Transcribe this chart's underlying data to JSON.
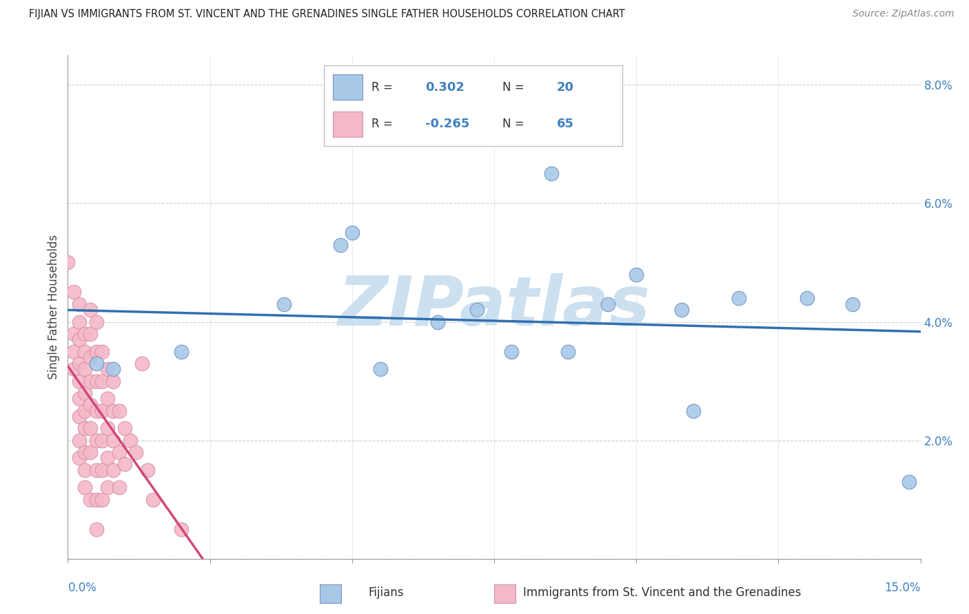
{
  "title": "FIJIAN VS IMMIGRANTS FROM ST. VINCENT AND THE GRENADINES SINGLE FATHER HOUSEHOLDS CORRELATION CHART",
  "source": "Source: ZipAtlas.com",
  "ylabel": "Single Father Households",
  "blue_color": "#a8c8e8",
  "pink_color": "#f4b8c8",
  "blue_line_color": "#3070b0",
  "pink_line_color": "#d04878",
  "pink_line_dash_color": "#e8a0b8",
  "text_color_blue": "#4080c0",
  "text_color_dark": "#303030",
  "blue_scatter": [
    [
      0.005,
      0.033
    ],
    [
      0.008,
      0.032
    ],
    [
      0.02,
      0.035
    ],
    [
      0.038,
      0.043
    ],
    [
      0.048,
      0.053
    ],
    [
      0.05,
      0.055
    ],
    [
      0.055,
      0.032
    ],
    [
      0.065,
      0.04
    ],
    [
      0.072,
      0.042
    ],
    [
      0.078,
      0.035
    ],
    [
      0.085,
      0.065
    ],
    [
      0.088,
      0.035
    ],
    [
      0.095,
      0.043
    ],
    [
      0.1,
      0.048
    ],
    [
      0.108,
      0.042
    ],
    [
      0.11,
      0.025
    ],
    [
      0.118,
      0.044
    ],
    [
      0.13,
      0.044
    ],
    [
      0.138,
      0.043
    ],
    [
      0.148,
      0.013
    ]
  ],
  "pink_scatter": [
    [
      0.0,
      0.05
    ],
    [
      0.001,
      0.045
    ],
    [
      0.001,
      0.038
    ],
    [
      0.001,
      0.035
    ],
    [
      0.001,
      0.032
    ],
    [
      0.002,
      0.043
    ],
    [
      0.002,
      0.04
    ],
    [
      0.002,
      0.037
    ],
    [
      0.002,
      0.033
    ],
    [
      0.002,
      0.03
    ],
    [
      0.002,
      0.027
    ],
    [
      0.002,
      0.024
    ],
    [
      0.002,
      0.02
    ],
    [
      0.002,
      0.017
    ],
    [
      0.003,
      0.038
    ],
    [
      0.003,
      0.035
    ],
    [
      0.003,
      0.032
    ],
    [
      0.003,
      0.028
    ],
    [
      0.003,
      0.025
    ],
    [
      0.003,
      0.022
    ],
    [
      0.003,
      0.018
    ],
    [
      0.003,
      0.015
    ],
    [
      0.003,
      0.012
    ],
    [
      0.004,
      0.042
    ],
    [
      0.004,
      0.038
    ],
    [
      0.004,
      0.034
    ],
    [
      0.004,
      0.03
    ],
    [
      0.004,
      0.026
    ],
    [
      0.004,
      0.022
    ],
    [
      0.004,
      0.018
    ],
    [
      0.004,
      0.01
    ],
    [
      0.005,
      0.04
    ],
    [
      0.005,
      0.035
    ],
    [
      0.005,
      0.03
    ],
    [
      0.005,
      0.025
    ],
    [
      0.005,
      0.02
    ],
    [
      0.005,
      0.015
    ],
    [
      0.005,
      0.01
    ],
    [
      0.005,
      0.005
    ],
    [
      0.006,
      0.035
    ],
    [
      0.006,
      0.03
    ],
    [
      0.006,
      0.025
    ],
    [
      0.006,
      0.02
    ],
    [
      0.006,
      0.015
    ],
    [
      0.006,
      0.01
    ],
    [
      0.007,
      0.032
    ],
    [
      0.007,
      0.027
    ],
    [
      0.007,
      0.022
    ],
    [
      0.007,
      0.017
    ],
    [
      0.007,
      0.012
    ],
    [
      0.008,
      0.03
    ],
    [
      0.008,
      0.025
    ],
    [
      0.008,
      0.02
    ],
    [
      0.008,
      0.015
    ],
    [
      0.009,
      0.025
    ],
    [
      0.009,
      0.018
    ],
    [
      0.009,
      0.012
    ],
    [
      0.01,
      0.022
    ],
    [
      0.01,
      0.016
    ],
    [
      0.011,
      0.02
    ],
    [
      0.012,
      0.018
    ],
    [
      0.013,
      0.033
    ],
    [
      0.014,
      0.015
    ],
    [
      0.015,
      0.01
    ],
    [
      0.02,
      0.005
    ]
  ],
  "xlim": [
    0.0,
    0.15
  ],
  "ylim": [
    0.0,
    0.085
  ],
  "yticks": [
    0.0,
    0.02,
    0.04,
    0.06,
    0.08
  ],
  "ytick_labels": [
    "",
    "2.0%",
    "4.0%",
    "6.0%",
    "8.0%"
  ],
  "xticks": [
    0.0,
    0.025,
    0.05,
    0.075,
    0.1,
    0.125,
    0.15
  ],
  "background_color": "#ffffff",
  "grid_color": "#cccccc",
  "watermark": "ZIPatlas",
  "watermark_color": "#cce0f0"
}
